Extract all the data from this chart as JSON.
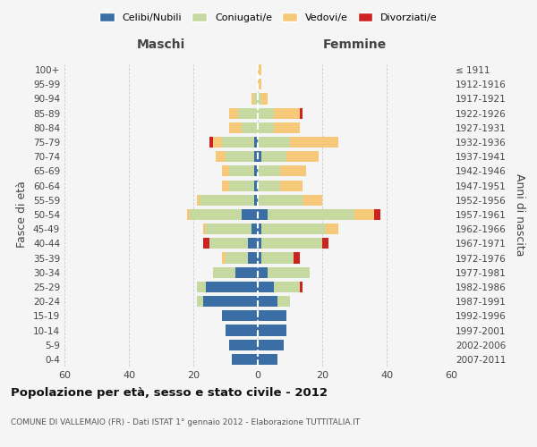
{
  "age_groups": [
    "100+",
    "95-99",
    "90-94",
    "85-89",
    "80-84",
    "75-79",
    "70-74",
    "65-69",
    "60-64",
    "55-59",
    "50-54",
    "45-49",
    "40-44",
    "35-39",
    "30-34",
    "25-29",
    "20-24",
    "15-19",
    "10-14",
    "5-9",
    "0-4"
  ],
  "birth_years": [
    "≤ 1911",
    "1912-1916",
    "1917-1921",
    "1922-1926",
    "1927-1931",
    "1932-1936",
    "1937-1941",
    "1942-1946",
    "1947-1951",
    "1952-1956",
    "1957-1961",
    "1962-1966",
    "1967-1971",
    "1972-1976",
    "1977-1981",
    "1982-1986",
    "1987-1991",
    "1992-1996",
    "1997-2001",
    "2002-2006",
    "2007-2011"
  ],
  "male_celibi": [
    0,
    0,
    0,
    0,
    0,
    1,
    1,
    1,
    1,
    1,
    5,
    2,
    3,
    3,
    7,
    16,
    17,
    11,
    10,
    9,
    8
  ],
  "male_coniugati": [
    0,
    0,
    1,
    6,
    5,
    10,
    9,
    8,
    8,
    17,
    16,
    14,
    12,
    7,
    7,
    3,
    2,
    0,
    0,
    0,
    0
  ],
  "male_vedovi": [
    0,
    0,
    1,
    3,
    4,
    3,
    3,
    2,
    2,
    1,
    1,
    1,
    0,
    1,
    0,
    0,
    0,
    0,
    0,
    0,
    0
  ],
  "male_divorziati": [
    0,
    0,
    0,
    0,
    0,
    1,
    0,
    0,
    0,
    0,
    0,
    0,
    2,
    0,
    0,
    0,
    0,
    0,
    0,
    0,
    0
  ],
  "female_celibi": [
    0,
    0,
    0,
    0,
    0,
    0,
    1,
    0,
    0,
    0,
    3,
    1,
    1,
    1,
    3,
    5,
    6,
    9,
    9,
    8,
    6
  ],
  "female_coniugati": [
    0,
    0,
    1,
    5,
    5,
    10,
    8,
    7,
    7,
    14,
    27,
    20,
    19,
    10,
    13,
    8,
    4,
    0,
    0,
    0,
    0
  ],
  "female_vedovi": [
    1,
    1,
    2,
    8,
    8,
    15,
    10,
    8,
    7,
    6,
    6,
    4,
    0,
    0,
    0,
    0,
    0,
    0,
    0,
    0,
    0
  ],
  "female_divorziati": [
    0,
    0,
    0,
    1,
    0,
    0,
    0,
    0,
    0,
    0,
    2,
    0,
    2,
    2,
    0,
    1,
    0,
    0,
    0,
    0,
    0
  ],
  "colors": {
    "celibi": "#3a6ea5",
    "coniugati": "#c5d9a0",
    "vedovi": "#f5c87a",
    "divorziati": "#cc2222"
  },
  "title": "Popolazione per età, sesso e stato civile - 2012",
  "subtitle": "COMUNE DI VALLEMAIO (FR) - Dati ISTAT 1° gennaio 2012 - Elaborazione TUTTITALIA.IT",
  "ylabel_left": "Fasce di età",
  "ylabel_right": "Anni di nascita",
  "xlabel_left": "Maschi",
  "xlabel_right": "Femmine",
  "xlim": 60,
  "bar_height": 0.75,
  "background_color": "#f5f5f5",
  "grid_color": "#cccccc"
}
